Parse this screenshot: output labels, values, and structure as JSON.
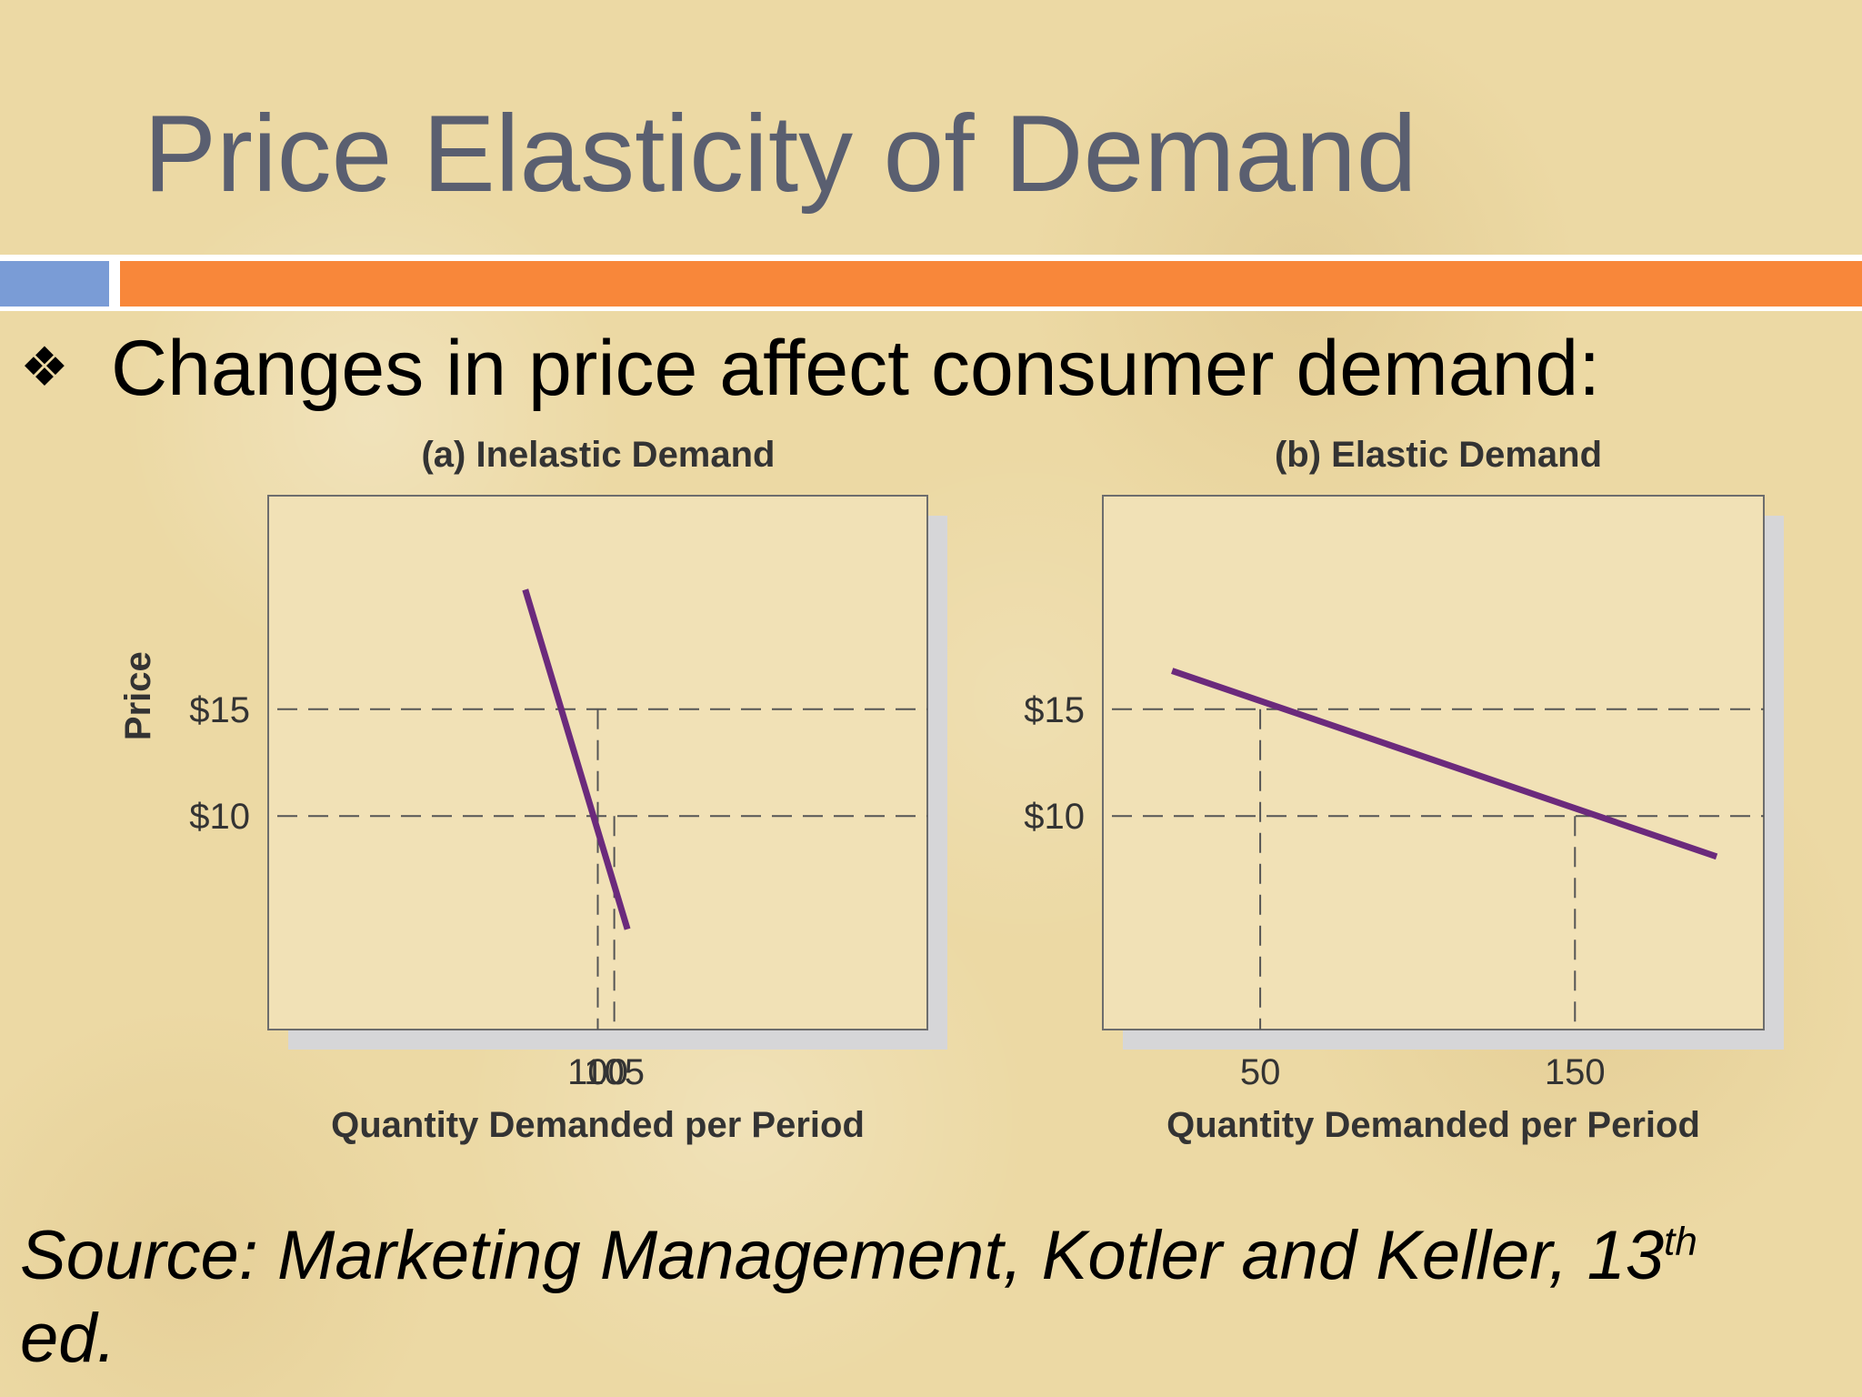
{
  "slide": {
    "title": "Price Elasticity of Demand",
    "bullet_icon": "diamond-bullet-icon",
    "bullet": "Changes in price affect consumer demand:",
    "source_main": "Source: Marketing Management, Kotler and Keller, 13",
    "source_sup": "th",
    "source_end": "ed."
  },
  "colors": {
    "title": "#5a5f70",
    "accent_blue": "#7a9cd6",
    "accent_orange": "#f8873a",
    "plot_bg": "#f1e1b6",
    "demand_line": "#6b2a7c"
  },
  "chart_data": [
    {
      "type": "line",
      "title": "(a) Inelastic Demand",
      "xlabel": "Quantity Demanded per Period",
      "ylabel": "Price",
      "xlim": [
        0,
        200
      ],
      "ylim": [
        0,
        25
      ],
      "x_ticks": [
        100,
        105
      ],
      "x_tick_labels": [
        "100",
        "105"
      ],
      "y_ticks": [
        10,
        15
      ],
      "y_tick_labels": [
        "$10",
        "$15"
      ],
      "series": [
        {
          "x": [
            78,
            109
          ],
          "y": [
            20.6,
            4.7
          ]
        }
      ],
      "reference_points": [
        {
          "x": 100,
          "y": 15
        },
        {
          "x": 105,
          "y": 10
        }
      ],
      "grid": false
    },
    {
      "type": "line",
      "title": "(b) Elastic Demand",
      "xlabel": "Quantity Demanded per Period",
      "ylabel": "",
      "xlim": [
        0,
        210
      ],
      "ylim": [
        0,
        25
      ],
      "x_ticks": [
        50,
        150
      ],
      "x_tick_labels": [
        "50",
        "150"
      ],
      "y_ticks": [
        10,
        15
      ],
      "y_tick_labels": [
        "$10",
        "$15"
      ],
      "series": [
        {
          "x": [
            22,
            195
          ],
          "y": [
            16.8,
            8.1
          ]
        }
      ],
      "reference_points": [
        {
          "x": 50,
          "y": 15
        },
        {
          "x": 150,
          "y": 10
        }
      ],
      "grid": false
    }
  ]
}
